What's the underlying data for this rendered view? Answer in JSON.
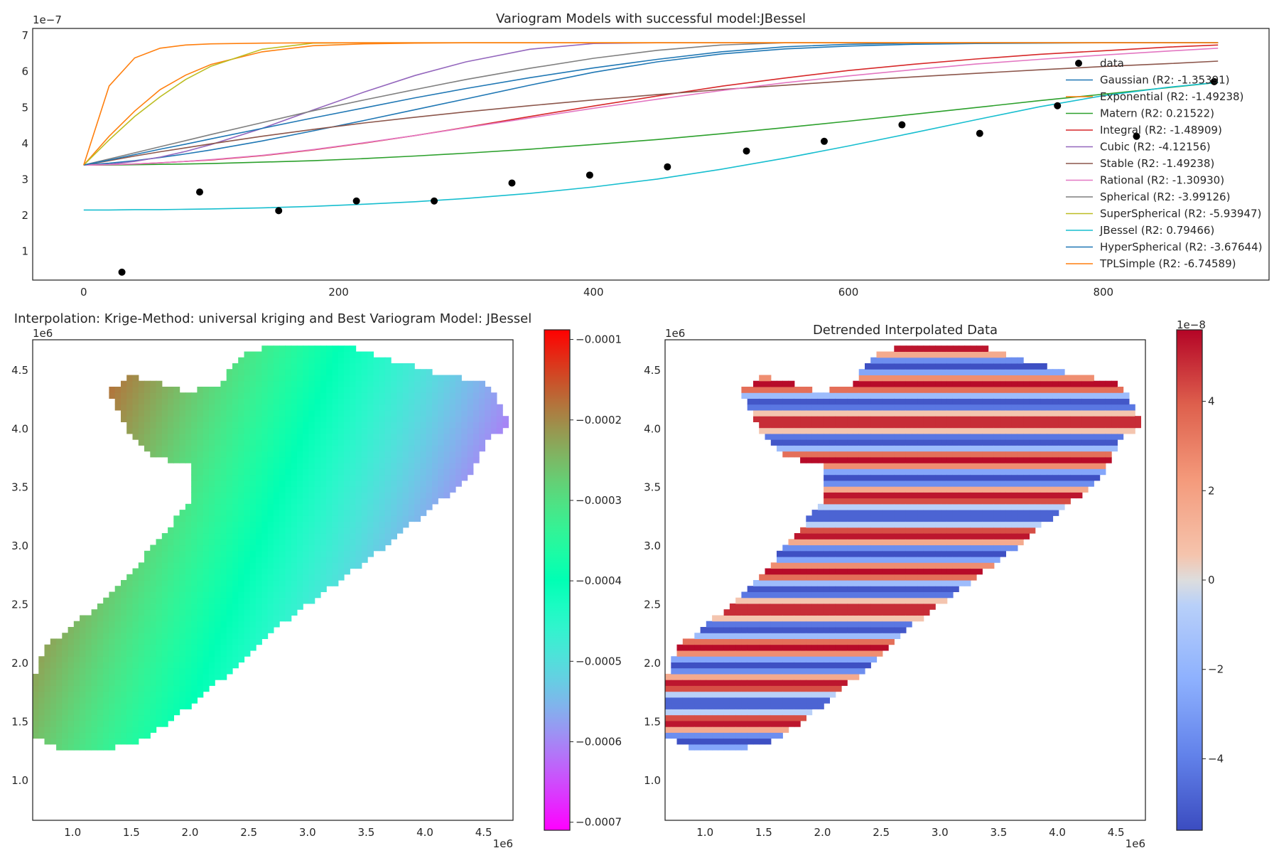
{
  "chart_data": [
    {
      "type": "line",
      "title": "Variogram Models with successful model:JBessel",
      "xlabel": "",
      "ylabel": "",
      "y_offset_label": "1e−7",
      "xlim": [
        -40,
        930
      ],
      "ylim": [
        0.2,
        7.2
      ],
      "y_unit_multiplier": 1e-07,
      "x_ticks": [
        0,
        200,
        400,
        600,
        800
      ],
      "y_ticks": [
        1,
        2,
        3,
        4,
        5,
        6,
        7
      ],
      "grid": false,
      "legend_position": "right",
      "data_points": {
        "name": "data",
        "color": "#000000",
        "x": [
          30,
          91,
          153,
          214,
          275,
          336,
          397,
          458,
          520,
          581,
          642,
          703,
          764,
          826,
          887
        ],
        "y": [
          0.42,
          2.65,
          2.13,
          2.4,
          2.4,
          2.9,
          3.12,
          3.35,
          3.79,
          4.06,
          4.52,
          4.28,
          5.05,
          4.2,
          5.72
        ]
      },
      "models": {
        "x": [
          0,
          20,
          40,
          60,
          80,
          100,
          140,
          180,
          220,
          260,
          300,
          350,
          400,
          450,
          500,
          550,
          600,
          650,
          700,
          750,
          800,
          850,
          890
        ],
        "series": [
          {
            "name": "Gaussian (R2: -1.35391)",
            "color": "#1f77b4",
            "values": [
              3.4,
              3.45,
              3.52,
              3.61,
              3.71,
              3.82,
              4.07,
              4.35,
              4.64,
              4.94,
              5.24,
              5.62,
              5.98,
              6.27,
              6.49,
              6.63,
              6.71,
              6.76,
              6.78,
              6.79,
              6.8,
              6.8,
              6.8
            ]
          },
          {
            "name": "Exponential (R2: -1.49238)",
            "color": "#ff7f0e",
            "values": [
              3.4,
              4.2,
              4.9,
              5.5,
              5.9,
              6.2,
              6.55,
              6.72,
              6.77,
              6.79,
              6.8,
              6.8,
              6.8,
              6.8,
              6.8,
              6.8,
              6.8,
              6.8,
              6.8,
              6.8,
              6.8,
              6.8,
              6.8
            ]
          },
          {
            "name": "Matern (R2: 0.21522)",
            "color": "#2ca02c",
            "values": [
              3.4,
              3.4,
              3.41,
              3.42,
              3.43,
              3.44,
              3.48,
              3.52,
              3.58,
              3.65,
              3.73,
              3.84,
              3.97,
              4.11,
              4.27,
              4.44,
              4.62,
              4.81,
              5.0,
              5.19,
              5.37,
              5.55,
              5.7
            ]
          },
          {
            "name": "Integral (R2: -1.48909)",
            "color": "#d62728",
            "values": [
              3.4,
              3.41,
              3.43,
              3.46,
              3.5,
              3.54,
              3.66,
              3.82,
              4.01,
              4.22,
              4.45,
              4.75,
              5.04,
              5.32,
              5.59,
              5.82,
              6.03,
              6.2,
              6.35,
              6.48,
              6.58,
              6.68,
              6.74
            ]
          },
          {
            "name": "Cubic (R2: -4.12156)",
            "color": "#9467bd",
            "values": [
              3.4,
              3.42,
              3.5,
              3.62,
              3.78,
              3.97,
              4.42,
              4.93,
              5.43,
              5.89,
              6.27,
              6.62,
              6.78,
              6.8,
              6.8,
              6.8,
              6.8,
              6.8,
              6.8,
              6.8,
              6.8,
              6.8,
              6.8
            ]
          },
          {
            "name": "Stable (R2: -1.49238)",
            "color": "#8c564b",
            "values": [
              3.4,
              3.52,
              3.65,
              3.77,
              3.88,
              3.99,
              4.2,
              4.39,
              4.57,
              4.73,
              4.88,
              5.05,
              5.21,
              5.36,
              5.5,
              5.62,
              5.74,
              5.85,
              5.95,
              6.05,
              6.14,
              6.22,
              6.29
            ]
          },
          {
            "name": "Rational (R2: -1.30930)",
            "color": "#e377c2",
            "values": [
              3.4,
              3.41,
              3.43,
              3.46,
              3.5,
              3.55,
              3.67,
              3.83,
              4.02,
              4.22,
              4.44,
              4.71,
              4.98,
              5.23,
              5.47,
              5.69,
              5.88,
              6.05,
              6.21,
              6.34,
              6.46,
              6.57,
              6.65
            ]
          },
          {
            "name": "Spherical (R2: -3.99126)",
            "color": "#7f7f7f",
            "values": [
              3.4,
              3.57,
              3.74,
              3.91,
              4.08,
              4.25,
              4.58,
              4.91,
              5.21,
              5.5,
              5.78,
              6.09,
              6.37,
              6.59,
              6.74,
              6.8,
              6.8,
              6.8,
              6.8,
              6.8,
              6.8,
              6.8,
              6.8
            ]
          },
          {
            "name": "SuperSpherical (R2: -5.93947)",
            "color": "#bcbd22",
            "values": [
              3.4,
              4.1,
              4.75,
              5.3,
              5.78,
              6.15,
              6.62,
              6.79,
              6.8,
              6.8,
              6.8,
              6.8,
              6.8,
              6.8,
              6.8,
              6.8,
              6.8,
              6.8,
              6.8,
              6.8,
              6.8,
              6.8,
              6.8
            ]
          },
          {
            "name": "JBessel (R2: 0.79466)",
            "color": "#17becf",
            "values": [
              2.15,
              2.15,
              2.16,
              2.16,
              2.17,
              2.18,
              2.21,
              2.25,
              2.31,
              2.38,
              2.47,
              2.61,
              2.79,
              3.01,
              3.28,
              3.59,
              3.93,
              4.29,
              4.66,
              5.02,
              5.33,
              5.56,
              5.7
            ]
          },
          {
            "name": "HyperSpherical (R2: -3.67644)",
            "color": "#1f77b4",
            "values": [
              3.4,
              3.54,
              3.69,
              3.84,
              3.98,
              4.13,
              4.42,
              4.71,
              4.99,
              5.27,
              5.53,
              5.83,
              6.1,
              6.34,
              6.55,
              6.69,
              6.76,
              6.79,
              6.8,
              6.8,
              6.8,
              6.8,
              6.8
            ]
          },
          {
            "name": "TPLSimple (R2: -6.74589)",
            "color": "#ff7f0e",
            "values": [
              3.4,
              5.6,
              6.38,
              6.65,
              6.74,
              6.77,
              6.79,
              6.8,
              6.8,
              6.8,
              6.8,
              6.8,
              6.8,
              6.8,
              6.8,
              6.8,
              6.8,
              6.8,
              6.8,
              6.8,
              6.8,
              6.8,
              6.8
            ]
          }
        ]
      }
    },
    {
      "type": "heatmap",
      "title": "Interpolation: Krige-Method: universal kriging and Best Variogram Model: JBessel",
      "x_offset_label": "1e6",
      "y_offset_label": "1e6",
      "xlim": [
        0.66,
        4.75
      ],
      "ylim": [
        0.66,
        4.76
      ],
      "x_ticks": [
        "1.0",
        "1.5",
        "2.0",
        "2.5",
        "3.0",
        "3.5",
        "4.0",
        "4.5"
      ],
      "y_ticks": [
        "1.0",
        "1.5",
        "2.0",
        "2.5",
        "3.0",
        "3.5",
        "4.0",
        "4.5"
      ],
      "colormap": "rainbow",
      "value_range": [
        -0.00071,
        -8.8e-05
      ],
      "colorbar_ticks": [
        "−0.0001",
        "−0.0002",
        "−0.0003",
        "−0.0004",
        "−0.0005",
        "−0.0006",
        "−0.0007"
      ],
      "colorbar_values": [
        -0.0001,
        -0.0002,
        -0.0003,
        -0.0004,
        -0.0005,
        -0.0006,
        -0.0007
      ],
      "field": "linear trend: value ≈ -0.00043 - 0.00012 (x - 2.7) + 0.00005 (y - 2.7)"
    },
    {
      "type": "heatmap",
      "title": "Detrended Interpolated Data",
      "x_offset_label": "1e6",
      "y_offset_label": "1e6",
      "colorbar_offset_label": "1e−8",
      "xlim": [
        0.66,
        4.75
      ],
      "ylim": [
        0.66,
        4.76
      ],
      "x_ticks": [
        "1.0",
        "1.5",
        "2.0",
        "2.5",
        "3.0",
        "3.5",
        "4.0",
        "4.5"
      ],
      "y_ticks": [
        "1.0",
        "1.5",
        "2.0",
        "2.5",
        "3.0",
        "3.5",
        "4.0",
        "4.5"
      ],
      "colormap": "coolwarm",
      "value_range": [
        -5.6,
        5.6
      ],
      "colorbar_ticks": [
        "4",
        "2",
        "0",
        "−2",
        "−4"
      ],
      "colorbar_values": [
        4,
        2,
        0,
        -2,
        -4
      ],
      "field": "horizontal stripes: value ≈ 5.5 cos(2π (y - 4.70) / 0.32)"
    }
  ],
  "domain_polygon": [
    [
      0.66,
      1.4
    ],
    [
      0.66,
      1.85
    ],
    [
      0.78,
      2.15
    ],
    [
      1.1,
      2.4
    ],
    [
      1.5,
      2.78
    ],
    [
      1.85,
      3.2
    ],
    [
      2.0,
      3.35
    ],
    [
      2.0,
      3.7
    ],
    [
      1.7,
      3.75
    ],
    [
      1.45,
      4.02
    ],
    [
      1.35,
      4.22
    ],
    [
      1.27,
      4.3
    ],
    [
      1.5,
      4.45
    ],
    [
      1.7,
      4.4
    ],
    [
      1.95,
      4.32
    ],
    [
      2.25,
      4.36
    ],
    [
      2.4,
      4.6
    ],
    [
      2.62,
      4.7
    ],
    [
      3.35,
      4.7
    ],
    [
      3.85,
      4.55
    ],
    [
      4.1,
      4.48
    ],
    [
      4.5,
      4.4
    ],
    [
      4.64,
      4.22
    ],
    [
      4.72,
      4.06
    ],
    [
      4.52,
      3.88
    ],
    [
      4.4,
      3.65
    ],
    [
      4.25,
      3.48
    ],
    [
      3.9,
      3.2
    ],
    [
      3.6,
      2.95
    ],
    [
      3.15,
      2.62
    ],
    [
      2.7,
      2.28
    ],
    [
      2.25,
      1.85
    ],
    [
      1.85,
      1.52
    ],
    [
      1.55,
      1.33
    ],
    [
      1.27,
      1.27
    ],
    [
      0.95,
      1.27
    ],
    [
      0.8,
      1.3
    ]
  ]
}
